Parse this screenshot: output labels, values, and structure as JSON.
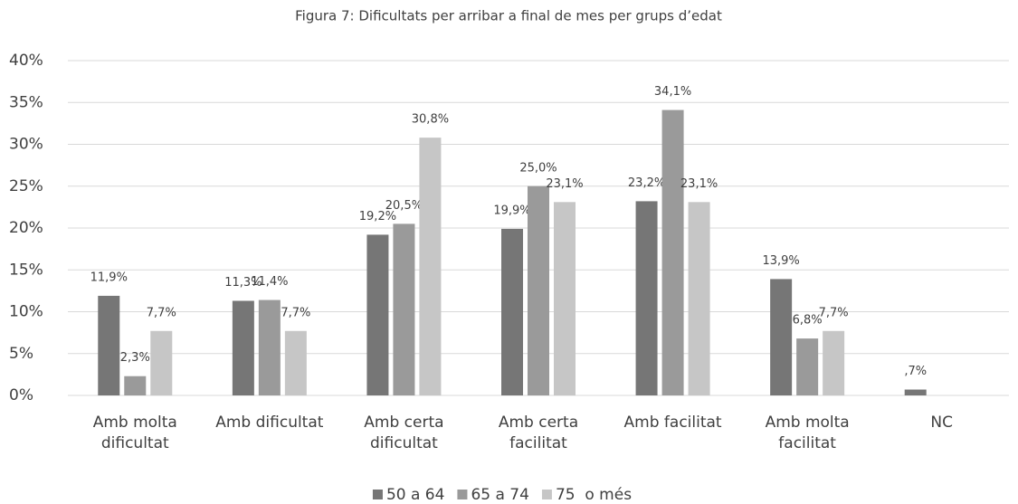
{
  "chart_data": {
    "type": "bar",
    "title": "Figura 7: Dificultats per arribar a final de mes per grups d’edat",
    "categories": [
      "Amb molta dificultat",
      "Amb dificultat",
      "Amb certa dificultat",
      "Amb certa facilitat",
      "Amb facilitat",
      "Amb molta facilitat",
      "NC"
    ],
    "series": [
      {
        "name": "50 a 64",
        "color": "#767676",
        "values": [
          11.9,
          11.3,
          19.2,
          19.9,
          23.2,
          13.9,
          0.7
        ],
        "value_labels": [
          "11,9%",
          "11,3%",
          "19,2%",
          "19,9%",
          "23,2%",
          "13,9%",
          ",7%"
        ]
      },
      {
        "name": "65 a 74",
        "color": "#9a9a9a",
        "values": [
          2.3,
          11.4,
          20.5,
          25.0,
          34.1,
          6.8,
          null
        ],
        "value_labels": [
          "2,3%",
          "11,4%",
          "20,5%",
          "25,0%",
          "34,1%",
          "6,8%",
          null
        ]
      },
      {
        "name": "75  o més",
        "color": "#c6c6c6",
        "values": [
          7.7,
          7.7,
          30.8,
          23.1,
          23.1,
          7.7,
          null
        ],
        "value_labels": [
          "7,7%",
          "7,7%",
          "30,8%",
          "23,1%",
          "23,1%",
          "7,7%",
          null
        ]
      }
    ],
    "ylim": [
      0,
      40
    ],
    "yticks": [
      {
        "value": 0,
        "label": "0%"
      },
      {
        "value": 5,
        "label": "5%"
      },
      {
        "value": 10,
        "label": "10%"
      },
      {
        "value": 15,
        "label": "15%"
      },
      {
        "value": 20,
        "label": "20%"
      },
      {
        "value": 25,
        "label": "25%"
      },
      {
        "value": 30,
        "label": "30%"
      },
      {
        "value": 35,
        "label": "35%"
      },
      {
        "value": 40,
        "label": "40%"
      }
    ],
    "grid": true,
    "legend": "bottom"
  }
}
